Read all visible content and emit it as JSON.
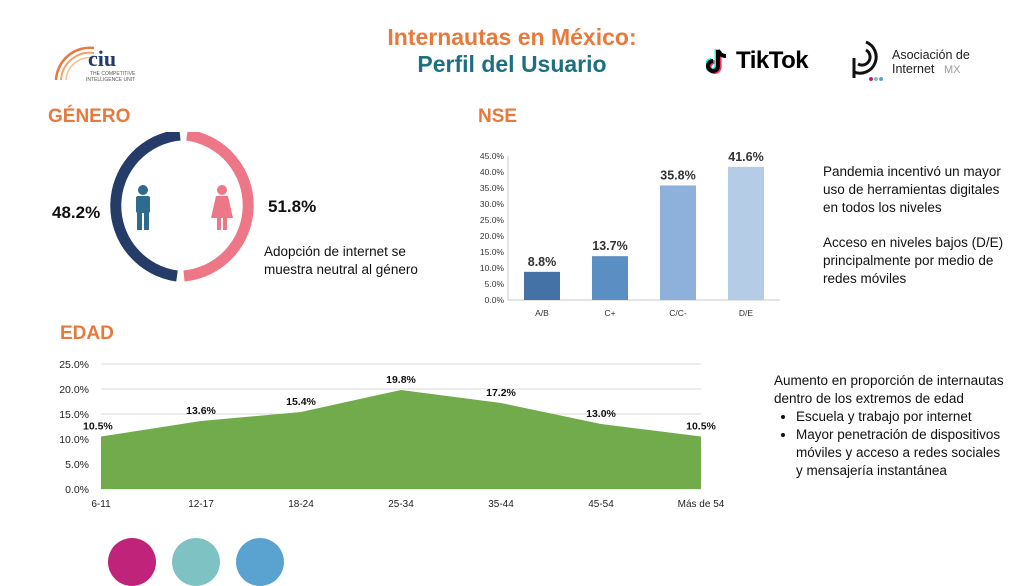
{
  "header": {
    "title_line1": "Internautas en México:",
    "title_line2": "Perfil del Usuario"
  },
  "logos": {
    "ciu_name": "ciu",
    "ciu_tagline1": "THE COMPETITIVE",
    "ciu_tagline2": "INTELLIGENCE UNIT",
    "tiktok": "TikTok",
    "asociacion_line1": "Asociación de",
    "asociacion_line2": "Internet",
    "asociacion_mx": "MX"
  },
  "genero": {
    "heading": "GÉNERO",
    "male_pct": "48.2%",
    "female_pct": "51.8%",
    "note": "Adopción de internet se muestra neutral al género"
  },
  "nse": {
    "heading": "NSE",
    "notes": [
      "Pandemia incentivó un mayor uso de herramientas digitales en todos los niveles",
      "Acceso en niveles bajos (D/E) principalmente por medio de redes móviles"
    ]
  },
  "edad": {
    "heading": "EDAD",
    "note_intro": "Aumento en proporción de internautas dentro de los extremos de edad",
    "bullets": [
      "Escuela y trabajo por internet",
      "Mayor penetración de dispositivos móviles y acceso a redes sociales y mensajería instantánea"
    ]
  },
  "colors": {
    "orange": "#e8793c",
    "teal": "#1f6f82",
    "male": "#243c67",
    "female": "#ed7787",
    "edad_fill": "#72ab4b",
    "dot1": "#c0237a",
    "dot2": "#7fc2c3",
    "dot3": "#5aa3d1"
  },
  "chart_data": [
    {
      "type": "pie",
      "title": "GÉNERO",
      "categories": [
        "Hombre",
        "Mujer"
      ],
      "values": [
        48.2,
        51.8
      ],
      "data_labels": [
        "48.2%",
        "51.8%"
      ]
    },
    {
      "type": "bar",
      "title": "NSE",
      "categories": [
        "A/B",
        "C+",
        "C/C-",
        "D/E"
      ],
      "values": [
        8.8,
        13.7,
        35.8,
        41.6
      ],
      "data_labels": [
        "8.8%",
        "13.7%",
        "35.8%",
        "41.6%"
      ],
      "bar_colors": [
        "#4472a6",
        "#5b8fc4",
        "#8db1da",
        "#b5cce6"
      ],
      "ylim": [
        0,
        45
      ],
      "yticks": [
        0,
        5,
        10,
        15,
        20,
        25,
        30,
        35,
        40,
        45
      ],
      "ytick_labels": [
        "0.0%",
        "5.0%",
        "10.0%",
        "15.0%",
        "20.0%",
        "25.0%",
        "30.0%",
        "35.0%",
        "40.0%",
        "45.0%"
      ],
      "grid": false
    },
    {
      "type": "area",
      "title": "EDAD",
      "categories": [
        "6-11",
        "12-17",
        "18-24",
        "25-34",
        "35-44",
        "45-54",
        "Más de 54"
      ],
      "values": [
        10.5,
        13.6,
        15.4,
        19.8,
        17.2,
        13.0,
        10.5
      ],
      "data_labels": [
        "10.5%",
        "13.6%",
        "15.4%",
        "19.8%",
        "17.2%",
        "13.0%",
        "10.5%"
      ],
      "ylim": [
        0,
        25
      ],
      "yticks": [
        0,
        5,
        10,
        15,
        20,
        25
      ],
      "ytick_labels": [
        "0.0%",
        "5.0%",
        "10.0%",
        "15.0%",
        "20.0%",
        "25.0%"
      ],
      "grid": true
    }
  ]
}
